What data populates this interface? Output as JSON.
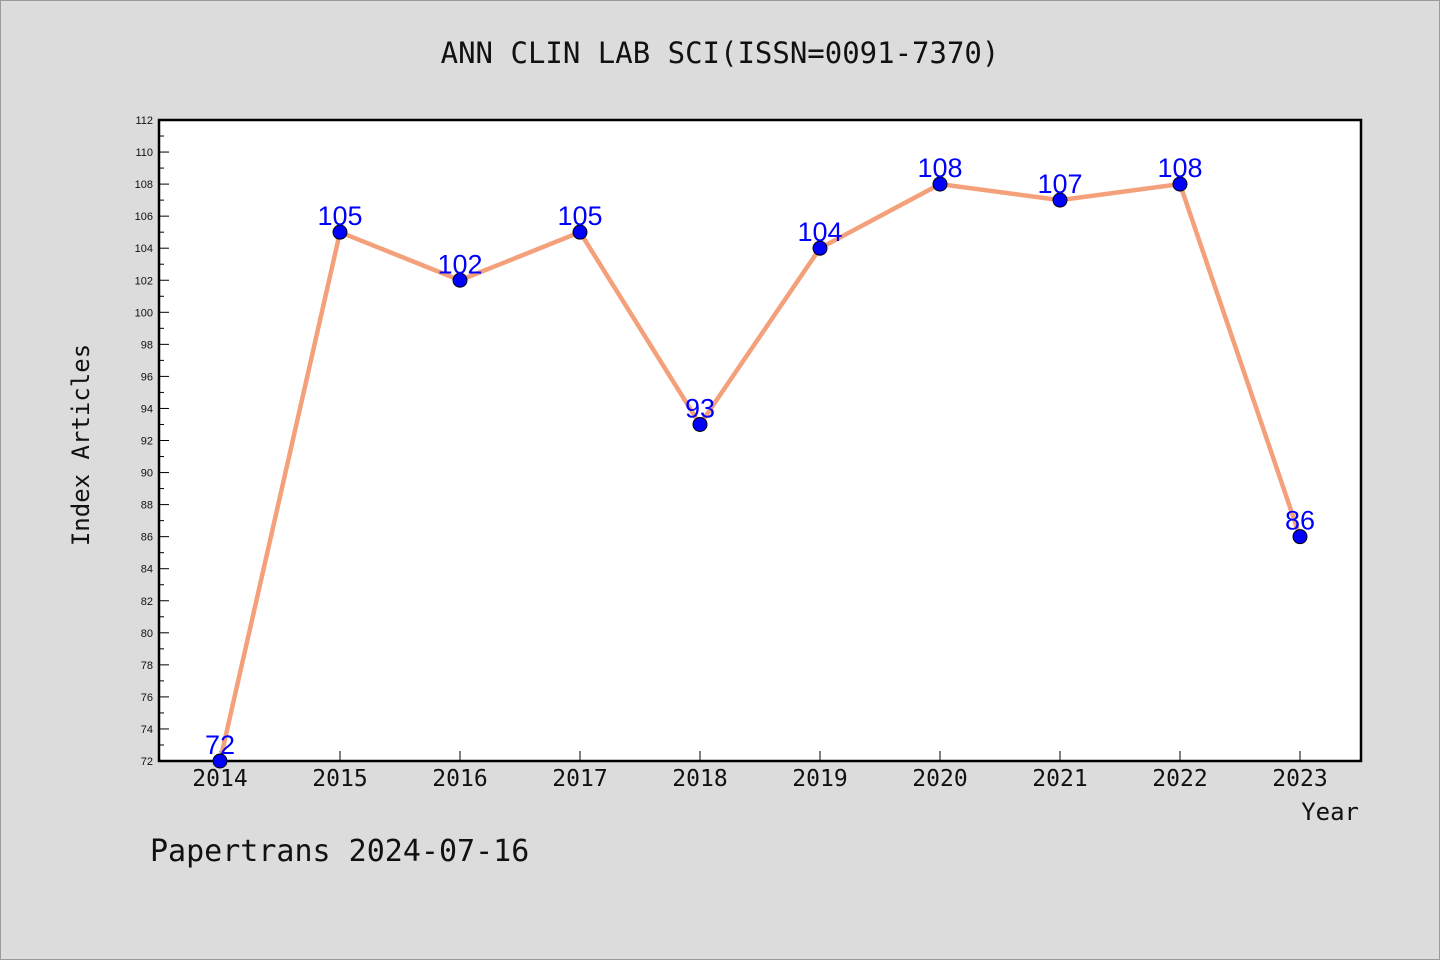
{
  "chart_data": {
    "type": "line",
    "title": "ANN CLIN LAB SCI(ISSN=0091-7370)",
    "xlabel": "Year",
    "ylabel": "Index Articles",
    "categories": [
      "2014",
      "2015",
      "2016",
      "2017",
      "2018",
      "2019",
      "2020",
      "2021",
      "2022",
      "2023"
    ],
    "series": [
      {
        "values": [
          72,
          105,
          102,
          105,
          93,
          104,
          108,
          107,
          108,
          86
        ]
      }
    ],
    "ylim": [
      72,
      112
    ],
    "ytick_step": 2,
    "grid": false,
    "data_labels": true,
    "colors": {
      "line": "#f4a07a",
      "marker": "#0000ff",
      "label": "#0000ff"
    }
  },
  "footer": {
    "credit": "Papertrans 2024-07-16"
  }
}
